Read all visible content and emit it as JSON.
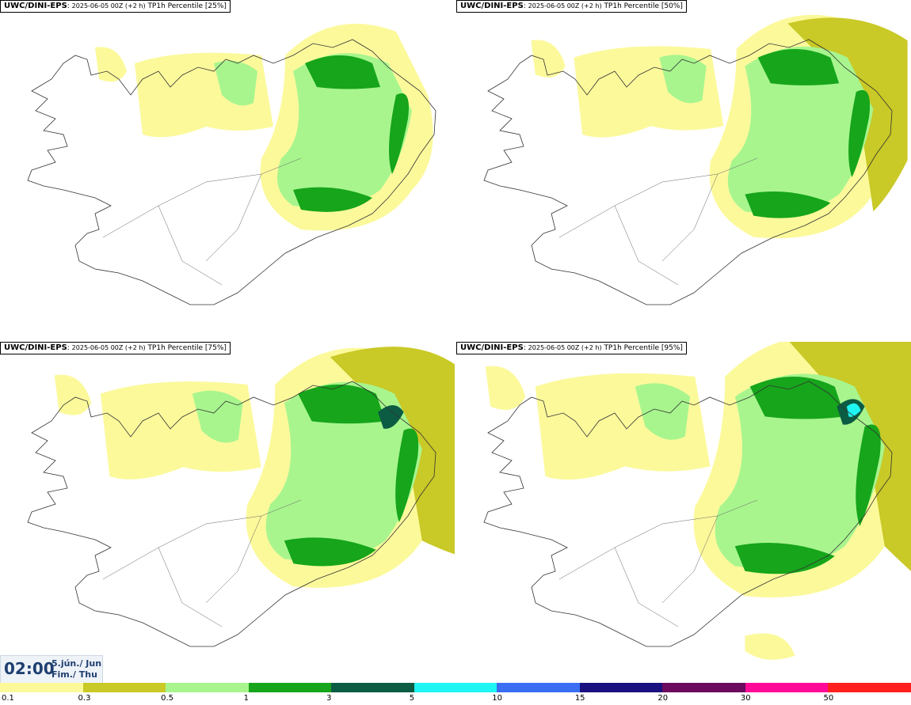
{
  "panels": [
    {
      "model": "UWC/DINI-EPS",
      "run": "2025-06-05 00Z (+2 h)",
      "product": "TP1h Percentile [25%]",
      "percentile": 25
    },
    {
      "model": "UWC/DINI-EPS",
      "run": "2025-06-05 00Z (+2 h)",
      "product": "TP1h Percentile [50%]",
      "percentile": 50
    },
    {
      "model": "UWC/DINI-EPS",
      "run": "2025-06-05 00Z (+2 h)",
      "product": "TP1h Percentile [75%]",
      "percentile": 75
    },
    {
      "model": "UWC/DINI-EPS",
      "run": "2025-06-05 00Z (+2 h)",
      "product": "TP1h Percentile [95%]",
      "percentile": 95
    }
  ],
  "valid_time": {
    "clock": "02:00",
    "date_line1": "5.jún./ Jun",
    "date_line2": "Fim./ Thu"
  },
  "legend": {
    "colors": [
      "#fcf99b",
      "#c9c927",
      "#a8f58e",
      "#16a51b",
      "#0c5b43",
      "#1ff5f3",
      "#3b6ef2",
      "#1a1080",
      "#6b0a5e",
      "#ff0a98",
      "#ff1f1f"
    ],
    "labels": [
      "0.1",
      "0.3",
      "0.5",
      "1",
      "3",
      "5",
      "10",
      "15",
      "20",
      "30",
      "50"
    ]
  }
}
